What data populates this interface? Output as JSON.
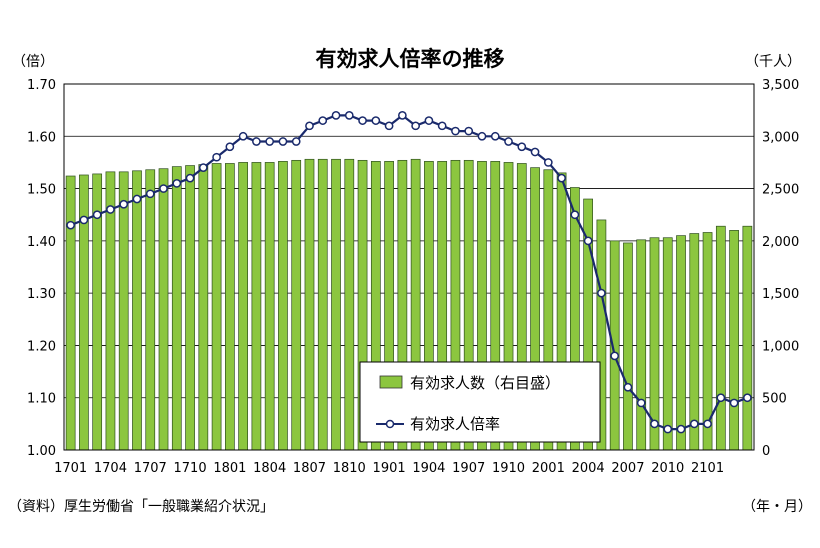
{
  "chart_data": {
    "type": "bar+line",
    "title": "有効求人倍率の推移",
    "left_axis_unit": "（倍）",
    "right_axis_unit": "（千人）",
    "x_axis_unit": "（年・月）",
    "source_note": "（資料）厚生労働省「一般職業紹介状況」",
    "left_axis": {
      "min": 1.0,
      "max": 1.7,
      "ticks": [
        "1.00",
        "1.10",
        "1.20",
        "1.30",
        "1.40",
        "1.50",
        "1.60",
        "1.70"
      ]
    },
    "right_axis": {
      "min": 0,
      "max": 3500,
      "ticks": [
        "0",
        "500",
        "1,000",
        "1,500",
        "2,000",
        "2,500",
        "3,000",
        "3,500"
      ]
    },
    "x_ticks": [
      "1701",
      "1704",
      "1707",
      "1710",
      "1801",
      "1804",
      "1807",
      "1810",
      "1901",
      "1904",
      "1907",
      "1910",
      "2001",
      "2004",
      "2007",
      "2010",
      "2101"
    ],
    "categories": [
      "1701",
      "1702",
      "1703",
      "1704",
      "1705",
      "1706",
      "1707",
      "1708",
      "1709",
      "1710",
      "1711",
      "1712",
      "1801",
      "1802",
      "1803",
      "1804",
      "1805",
      "1806",
      "1807",
      "1808",
      "1809",
      "1810",
      "1811",
      "1812",
      "1901",
      "1902",
      "1903",
      "1904",
      "1905",
      "1906",
      "1907",
      "1908",
      "1909",
      "1910",
      "1911",
      "1912",
      "2001",
      "2002",
      "2003",
      "2004",
      "2005",
      "2006",
      "2007",
      "2008",
      "2009",
      "2010",
      "2011",
      "2012",
      "2101",
      "2102",
      "2103",
      "2104"
    ],
    "series": [
      {
        "name": "有効求人数（右目盛）",
        "axis": "right",
        "kind": "bar",
        "color": "#8cc63f",
        "values": [
          2620,
          2630,
          2640,
          2660,
          2660,
          2670,
          2680,
          2690,
          2710,
          2720,
          2730,
          2740,
          2740,
          2750,
          2750,
          2750,
          2760,
          2770,
          2780,
          2780,
          2780,
          2780,
          2770,
          2760,
          2760,
          2770,
          2780,
          2760,
          2760,
          2770,
          2770,
          2760,
          2760,
          2750,
          2740,
          2700,
          2680,
          2650,
          2510,
          2400,
          2200,
          2000,
          1980,
          2010,
          2030,
          2030,
          2050,
          2070,
          2080,
          2140,
          2100,
          2140
        ]
      },
      {
        "name": "有効求人倍率",
        "axis": "left",
        "kind": "line",
        "color": "#1a2a6c",
        "values": [
          1.43,
          1.44,
          1.45,
          1.46,
          1.47,
          1.48,
          1.49,
          1.5,
          1.51,
          1.52,
          1.54,
          1.56,
          1.58,
          1.6,
          1.59,
          1.59,
          1.59,
          1.59,
          1.62,
          1.63,
          1.64,
          1.64,
          1.63,
          1.63,
          1.62,
          1.64,
          1.62,
          1.63,
          1.62,
          1.61,
          1.61,
          1.6,
          1.6,
          1.59,
          1.58,
          1.57,
          1.55,
          1.52,
          1.45,
          1.4,
          1.3,
          1.18,
          1.12,
          1.09,
          1.05,
          1.04,
          1.04,
          1.05,
          1.05,
          1.1,
          1.09,
          1.1
        ]
      }
    ],
    "legend": {
      "placement": "lower-center"
    },
    "grid": true
  }
}
